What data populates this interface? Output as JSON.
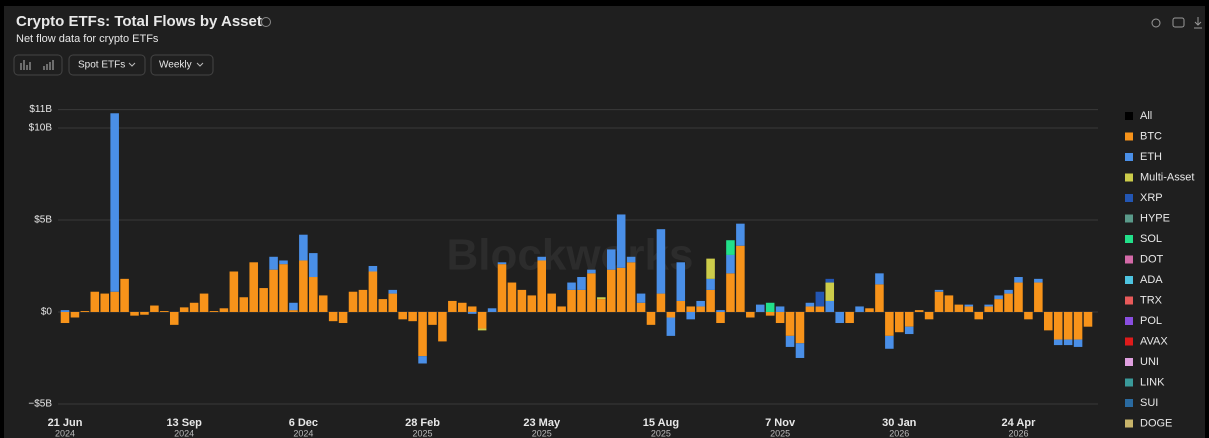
{
  "chart_data": {
    "type": "stacked-bar",
    "title": "Crypto ETFs: Total Flows by Asset",
    "subtitle": "Net flow data for crypto ETFs",
    "controls": {
      "product": "Spot ETFs",
      "interval": "Weekly"
    },
    "watermark": "Blockworks",
    "ylim": [
      -5.6,
      11
    ],
    "yticks": [
      {
        "value": -5,
        "label": "−$5B"
      },
      {
        "value": 0,
        "label": "$0"
      },
      {
        "value": 5,
        "label": "$5B"
      },
      {
        "value": 10,
        "label": "$10B"
      },
      {
        "value": 11,
        "label": "$11B"
      }
    ],
    "grid": true,
    "legend_position": "right",
    "categories": [
      "21 Jun",
      null,
      null,
      null,
      null,
      null,
      null,
      null,
      null,
      null,
      null,
      null,
      "13 Sep",
      null,
      null,
      null,
      null,
      null,
      null,
      null,
      null,
      null,
      null,
      null,
      "6 Dec",
      null,
      null,
      null,
      null,
      null,
      null,
      null,
      null,
      null,
      null,
      null,
      "28 Feb",
      null,
      null,
      null,
      null,
      null,
      null,
      null,
      null,
      null,
      null,
      null,
      "23 May",
      null,
      null,
      null,
      null,
      null,
      null,
      null,
      null,
      null,
      null,
      null,
      "15 Aug",
      null,
      null,
      null,
      null,
      null,
      null,
      null,
      null,
      null,
      null,
      null,
      "7 Nov",
      null,
      null,
      null,
      null,
      null,
      null,
      null,
      null,
      null,
      null,
      null,
      "30 Jan",
      null,
      null,
      null,
      null,
      null,
      null,
      null,
      null,
      null,
      null,
      null,
      "24 Apr",
      null,
      null,
      null,
      null,
      null,
      null,
      null
    ],
    "category_years": [
      "2024",
      null,
      null,
      null,
      null,
      null,
      null,
      null,
      null,
      null,
      null,
      null,
      "2024",
      null,
      null,
      null,
      null,
      null,
      null,
      null,
      null,
      null,
      null,
      null,
      "2024",
      null,
      null,
      null,
      null,
      null,
      null,
      null,
      null,
      null,
      null,
      null,
      "2025",
      null,
      null,
      null,
      null,
      null,
      null,
      null,
      null,
      null,
      null,
      null,
      "2025",
      null,
      null,
      null,
      null,
      null,
      null,
      null,
      null,
      null,
      null,
      null,
      "2025",
      null,
      null,
      null,
      null,
      null,
      null,
      null,
      null,
      null,
      null,
      null,
      "2025",
      null,
      null,
      null,
      null,
      null,
      null,
      null,
      null,
      null,
      null,
      null,
      "2026",
      null,
      null,
      null,
      null,
      null,
      null,
      null,
      null,
      null,
      null,
      null,
      "2026",
      null,
      null,
      null,
      null,
      null,
      null,
      null
    ],
    "series": [
      {
        "name": "All",
        "color": "#000000"
      },
      {
        "name": "BTC",
        "color": "#f7931a",
        "values": [
          -0.6,
          -0.3,
          0.05,
          1.1,
          1.0,
          1.1,
          1.8,
          -0.2,
          -0.15,
          0.35,
          0.05,
          -0.7,
          0.25,
          0.5,
          1.0,
          0.05,
          0.2,
          2.2,
          0.8,
          2.7,
          1.3,
          2.3,
          2.6,
          0.1,
          2.8,
          1.9,
          0.9,
          -0.5,
          -0.6,
          1.1,
          1.2,
          2.2,
          0.7,
          1.0,
          -0.4,
          -0.5,
          -2.4,
          -0.7,
          -1.6,
          0.6,
          0.5,
          0.3,
          -0.9,
          0,
          2.6,
          1.6,
          1.2,
          0.9,
          2.8,
          1.0,
          0.3,
          1.2,
          1.2,
          2.1,
          0.7,
          2.3,
          2.4,
          2.7,
          0.5,
          -0.7,
          1.0,
          -0.3,
          0.6,
          0.3,
          0.3,
          1.2,
          -0.6,
          2.1,
          3.6,
          -0.3,
          0,
          -0.2,
          -0.6,
          -1.3,
          -1.7,
          0.3,
          0.3,
          0,
          0,
          -0.6,
          0,
          0.2,
          1.5,
          -1.3,
          -1.1,
          -0.8,
          0.1,
          -0.4,
          1.1,
          0.9,
          0.4,
          0.3,
          -0.4,
          0.3,
          0.7,
          1.0,
          1.6,
          -0.4,
          1.6,
          -1.0,
          -1.5,
          -1.5,
          -1.5,
          -0.8
        ]
      },
      {
        "name": "ETH",
        "color": "#4a8fe7",
        "values": [
          0.1,
          0,
          0,
          0,
          0,
          9.7,
          0,
          0,
          0,
          0,
          0,
          0,
          0,
          0,
          0,
          0,
          0,
          0,
          0,
          0,
          0,
          0.7,
          0.2,
          0.4,
          1.4,
          1.3,
          0,
          0,
          0,
          0,
          0,
          0.3,
          0,
          0.2,
          0,
          0,
          -0.4,
          0,
          0,
          0,
          0,
          -0.1,
          0,
          0.2,
          0.1,
          0,
          0,
          0,
          0.2,
          0,
          0,
          0.4,
          0.7,
          0.2,
          0,
          1.1,
          2.9,
          0.3,
          0.5,
          0,
          3.5,
          -1.0,
          2.1,
          -0.4,
          0.3,
          0.6,
          0.1,
          1.0,
          1.2,
          0,
          0.4,
          0,
          0.3,
          -0.6,
          -0.8,
          0.2,
          0,
          0.6,
          -0.6,
          0,
          0.3,
          0,
          0.6,
          -0.7,
          0,
          -0.4,
          0,
          0,
          0.1,
          0,
          0,
          0.1,
          0,
          0.1,
          0.2,
          0.2,
          0.3,
          0,
          0.2,
          0,
          -0.3,
          -0.3,
          -0.4,
          0
        ]
      },
      {
        "name": "Multi-Asset",
        "color": "#cccc4a",
        "values": [
          0,
          0,
          0,
          0,
          0,
          0,
          0,
          0,
          0,
          0,
          0,
          0,
          0,
          0,
          0,
          0,
          0,
          0,
          0,
          0,
          0,
          0,
          0,
          0,
          0,
          0,
          0,
          0,
          0,
          0,
          0,
          0,
          0,
          0,
          0,
          0,
          0,
          0,
          0,
          0,
          0,
          0,
          -0.1,
          0,
          0,
          0,
          0,
          0,
          0,
          0,
          0,
          0,
          0,
          0,
          0.1,
          0,
          0,
          0,
          0,
          0,
          0,
          0,
          0,
          0,
          0,
          1.1,
          0,
          0,
          0,
          0,
          0,
          0,
          0,
          0,
          0,
          0,
          0,
          1.0,
          0,
          0,
          0,
          0,
          0,
          0,
          0,
          0,
          0,
          0,
          0,
          0,
          0,
          0,
          0,
          0,
          0,
          0,
          0,
          0,
          0,
          0,
          0,
          0,
          0,
          0
        ]
      },
      {
        "name": "XRP",
        "color": "#2356b3",
        "values": [
          0,
          0,
          0,
          0,
          0,
          0,
          0,
          0,
          0,
          0,
          0,
          0,
          0,
          0,
          0,
          0,
          0,
          0,
          0,
          0,
          0,
          0,
          0,
          0,
          0,
          0,
          0,
          0,
          0,
          0,
          0,
          0,
          0,
          0,
          0,
          0,
          0,
          0,
          0,
          0,
          0,
          0,
          0,
          0,
          0,
          0,
          0,
          0,
          0,
          0,
          0,
          0,
          0,
          0,
          0,
          0,
          0,
          0,
          0,
          0,
          0,
          0,
          0,
          0,
          0,
          0,
          0,
          0,
          0,
          0,
          0,
          0,
          0,
          0,
          0,
          0,
          0.8,
          0.2,
          0,
          0,
          0,
          0,
          0,
          0,
          0,
          0,
          0,
          0,
          0,
          0,
          0,
          0,
          0,
          0,
          0,
          0,
          0,
          0,
          0,
          0,
          0,
          0,
          0,
          0
        ]
      },
      {
        "name": "HYPE",
        "color": "#5a9a8a"
      },
      {
        "name": "SOL",
        "color": "#22e08a",
        "values": [
          0,
          0,
          0,
          0,
          0,
          0,
          0,
          0,
          0,
          0,
          0,
          0,
          0,
          0,
          0,
          0,
          0,
          0,
          0,
          0,
          0,
          0,
          0,
          0,
          0,
          0,
          0,
          0,
          0,
          0,
          0,
          0,
          0,
          0,
          0,
          0,
          0,
          0,
          0,
          0,
          0,
          0,
          0,
          0,
          0,
          0,
          0,
          0,
          0,
          0,
          0,
          0,
          0,
          0,
          0,
          0,
          0,
          0,
          0,
          0,
          0,
          0,
          0,
          0,
          0,
          0,
          0,
          0.8,
          0,
          0,
          0,
          0.5,
          0,
          0,
          0,
          0,
          0,
          0,
          0,
          0,
          0,
          0,
          0,
          0,
          0,
          0,
          0,
          0,
          0,
          0,
          0,
          0,
          0,
          0,
          0,
          0,
          0,
          0,
          0,
          0,
          0,
          0,
          0,
          0
        ]
      },
      {
        "name": "DOT",
        "color": "#d46aa8"
      },
      {
        "name": "ADA",
        "color": "#4ec4e0"
      },
      {
        "name": "TRX",
        "color": "#e85a5a"
      },
      {
        "name": "POL",
        "color": "#8a4ee0"
      },
      {
        "name": "AVAX",
        "color": "#e01b1b"
      },
      {
        "name": "UNI",
        "color": "#e0a0e0"
      },
      {
        "name": "LINK",
        "color": "#3a9a9a"
      },
      {
        "name": "SUI",
        "color": "#2a6aa0"
      },
      {
        "name": "DOGE",
        "color": "#c8b46a"
      }
    ]
  }
}
